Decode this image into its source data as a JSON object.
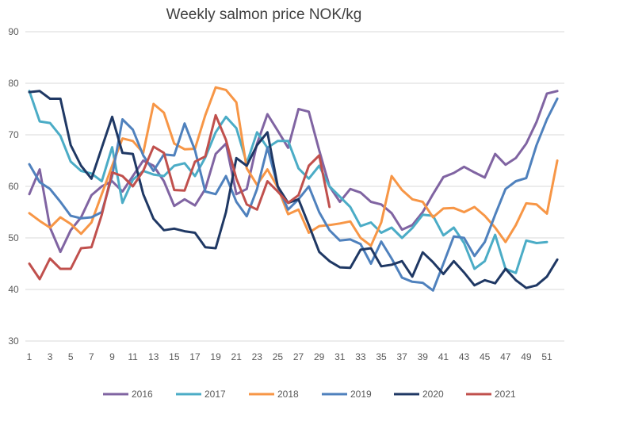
{
  "chart_data": {
    "type": "line",
    "title": "Weekly salmon price NOK/kg",
    "xlabel": "",
    "ylabel": "",
    "ylim": [
      30,
      90
    ],
    "yticks": [
      30,
      40,
      50,
      60,
      70,
      80,
      90
    ],
    "xticks": [
      1,
      3,
      5,
      7,
      9,
      11,
      13,
      15,
      17,
      19,
      21,
      23,
      25,
      27,
      29,
      31,
      33,
      35,
      37,
      39,
      41,
      43,
      45,
      47,
      49,
      51
    ],
    "grid": true,
    "legend_position": "bottom",
    "series": [
      {
        "name": "2016",
        "color": "#8064A2",
        "values": [
          58.5,
          63.3,
          52,
          47.3,
          51.5,
          54,
          58.3,
          60,
          61,
          59,
          62,
          65,
          64,
          61,
          56.2,
          57.5,
          56.3,
          59.5,
          66.3,
          68.3,
          58.5,
          59.5,
          68.3,
          74,
          70.8,
          67.5,
          75,
          74.5,
          67,
          60,
          57,
          59.5,
          58.8,
          57,
          56.5,
          54.8,
          51.6,
          52.5,
          55,
          58.5,
          61.8,
          62.6,
          63.8,
          62.7,
          61.7,
          66.3,
          64.2,
          65.5,
          68.3,
          72.5,
          78,
          78.5
        ]
      },
      {
        "name": "2017",
        "color": "#4BACC6",
        "values": [
          78.5,
          72.6,
          72.3,
          69.8,
          64.8,
          63,
          62.5,
          61,
          67.6,
          56.8,
          61.3,
          63,
          62.3,
          62,
          64,
          64.5,
          62,
          65.6,
          70.5,
          73.5,
          71.3,
          64.5,
          70.5,
          67.5,
          68.8,
          68.8,
          63.5,
          61.5,
          64,
          60,
          58,
          56,
          52.3,
          53,
          51,
          52,
          50,
          51.9,
          54.5,
          54.3,
          50.5,
          52,
          49,
          44,
          45.5,
          50.6,
          44,
          43.2,
          49.5,
          49,
          49.2
        ]
      },
      {
        "name": "2018",
        "color": "#F79646",
        "values": [
          54.8,
          53.3,
          52,
          54,
          52.7,
          50.8,
          53,
          58.5,
          64,
          69.3,
          68.8,
          66.5,
          76,
          74.3,
          68.3,
          67.2,
          67.3,
          73.8,
          79.2,
          78.7,
          76.3,
          63.5,
          60.3,
          63.3,
          59.8,
          54.6,
          55.5,
          51,
          52.3,
          52.5,
          52.8,
          53.2,
          50,
          48.5,
          53,
          62,
          59.3,
          57.5,
          57,
          54,
          55.7,
          55.8,
          55,
          56,
          54.3,
          52,
          49.2,
          52.5,
          56.7,
          56.5,
          54.7,
          65
        ]
      },
      {
        "name": "2019",
        "color": "#4F81BD",
        "values": [
          64.3,
          60.8,
          59.5,
          57,
          54.3,
          53.8,
          54,
          55,
          62,
          73,
          71,
          66,
          63,
          66.2,
          66,
          72.2,
          67,
          59,
          58.5,
          62,
          57,
          54.2,
          59.5,
          67.5,
          60,
          55.5,
          57.5,
          60,
          55,
          51.5,
          49.5,
          49.7,
          48.8,
          45,
          49.3,
          46,
          42.3,
          41.5,
          41.3,
          39.8,
          45,
          50.3,
          50,
          46.5,
          49.2,
          54.5,
          59.5,
          61,
          61.6,
          68,
          73,
          77
        ]
      },
      {
        "name": "2020",
        "color": "#1F3864",
        "values": [
          78.3,
          78.5,
          77,
          77,
          68,
          64,
          61.5,
          67.5,
          73.5,
          66.5,
          66.3,
          58.5,
          53.7,
          51.5,
          51.8,
          51.3,
          51,
          48.2,
          48,
          55,
          65.5,
          64,
          68,
          70.5,
          60,
          56.8,
          57.5,
          52.5,
          47.3,
          45.5,
          44.3,
          44.2,
          47.7,
          48,
          44.5,
          44.8,
          45.5,
          42.5,
          47.2,
          45.3,
          43,
          45.5,
          43.3,
          40.8,
          41.8,
          41.2,
          44,
          41.8,
          40.3,
          40.8,
          42.5,
          45.8
        ]
      },
      {
        "name": "2021",
        "color": "#C0504D",
        "values": [
          45,
          42,
          46,
          44,
          44,
          48,
          48.2,
          54.5,
          62.7,
          62,
          60,
          63,
          67.7,
          66.5,
          59.3,
          59.2,
          64.8,
          65.8,
          73.8,
          69,
          61.5,
          56.5,
          55.5,
          61,
          59,
          56.8,
          58.3,
          64,
          66,
          56
        ]
      }
    ]
  }
}
